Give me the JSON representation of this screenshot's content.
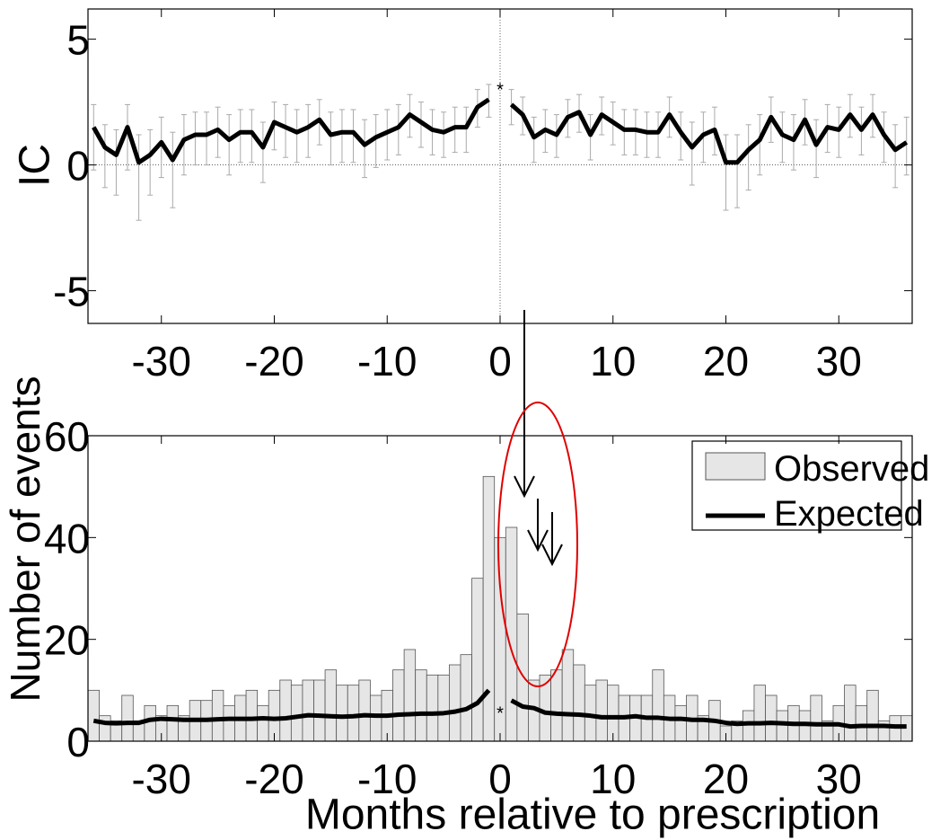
{
  "chart_data": [
    {
      "type": "line",
      "ylabel": "IC",
      "x": [
        -36,
        -35,
        -34,
        -33,
        -32,
        -31,
        -30,
        -29,
        -28,
        -27,
        -26,
        -25,
        -24,
        -23,
        -22,
        -21,
        -20,
        -19,
        -18,
        -17,
        -16,
        -15,
        -14,
        -13,
        -12,
        -11,
        -10,
        -9,
        -8,
        -7,
        -6,
        -5,
        -4,
        -3,
        -2,
        -1,
        0,
        1,
        2,
        3,
        4,
        5,
        6,
        7,
        8,
        9,
        10,
        11,
        12,
        13,
        14,
        15,
        16,
        17,
        18,
        19,
        20,
        21,
        22,
        23,
        24,
        25,
        26,
        27,
        28,
        29,
        30,
        31,
        32,
        33,
        34,
        35,
        36
      ],
      "values": [
        1.5,
        0.7,
        0.4,
        1.5,
        0.1,
        0.4,
        0.9,
        0.2,
        1.0,
        1.2,
        1.2,
        1.4,
        1.0,
        1.3,
        1.3,
        0.7,
        1.7,
        1.5,
        1.3,
        1.5,
        1.8,
        1.2,
        1.3,
        1.3,
        0.8,
        1.1,
        1.3,
        1.5,
        2.0,
        1.7,
        1.4,
        1.3,
        1.5,
        1.5,
        2.3,
        2.6,
        null,
        2.4,
        2.0,
        1.1,
        1.4,
        1.2,
        1.9,
        2.1,
        1.2,
        2.0,
        1.7,
        1.4,
        1.4,
        1.3,
        1.3,
        2.0,
        1.3,
        0.7,
        1.2,
        1.4,
        0.1,
        0.1,
        0.6,
        1.0,
        1.9,
        1.2,
        1.0,
        1.8,
        0.8,
        1.5,
        1.4,
        2.0,
        1.4,
        2.0,
        1.2,
        0.6,
        0.9
      ],
      "error_lower": [
        -0.2,
        -0.9,
        -1.2,
        -0.2,
        -2.2,
        -1.2,
        -0.5,
        -1.7,
        -0.4,
        0.0,
        0.0,
        0.3,
        -0.4,
        0.1,
        0.1,
        -0.7,
        0.6,
        0.3,
        0.1,
        0.3,
        0.8,
        0.0,
        0.1,
        0.1,
        -0.5,
        -0.1,
        0.2,
        0.4,
        1.1,
        0.7,
        0.4,
        0.3,
        0.5,
        0.5,
        1.5,
        1.9,
        null,
        1.6,
        1.2,
        0.1,
        0.5,
        0.3,
        1.1,
        1.3,
        0.2,
        1.2,
        0.8,
        0.4,
        0.4,
        0.3,
        0.3,
        1.1,
        0.2,
        -0.8,
        0.1,
        0.4,
        -1.8,
        -1.7,
        -1.0,
        -0.4,
        0.9,
        0.1,
        -0.2,
        0.8,
        -0.5,
        0.5,
        0.3,
        1.1,
        0.4,
        1.1,
        0.1,
        -0.9,
        -0.4
      ],
      "error_upper": [
        2.4,
        1.6,
        1.4,
        2.4,
        1.2,
        1.4,
        1.9,
        1.3,
        2.0,
        2.1,
        2.1,
        2.3,
        2.0,
        2.2,
        2.2,
        1.7,
        2.5,
        2.4,
        2.2,
        2.4,
        2.6,
        2.1,
        2.2,
        2.2,
        1.8,
        2.0,
        2.2,
        2.4,
        2.8,
        2.5,
        2.2,
        2.1,
        2.3,
        2.3,
        3.0,
        3.2,
        null,
        3.0,
        2.7,
        1.9,
        2.2,
        2.0,
        2.6,
        2.8,
        2.0,
        2.7,
        2.5,
        2.2,
        2.2,
        2.1,
        2.1,
        2.7,
        2.1,
        1.7,
        2.1,
        2.3,
        1.2,
        1.2,
        1.6,
        2.0,
        2.7,
        2.1,
        2.0,
        2.6,
        1.8,
        2.4,
        2.3,
        2.8,
        2.3,
        2.8,
        2.1,
        1.6,
        1.9
      ],
      "color": "#000000",
      "error_color": "#aaaaaa",
      "center_marker": {
        "x": 0,
        "value": 3.0
      },
      "xlim": [
        -36.5,
        36.5
      ],
      "ylim": [
        -6.3,
        6.2
      ],
      "xticks": [
        -30,
        -20,
        -10,
        0,
        10,
        20,
        30
      ],
      "yticks": [
        -5,
        0,
        5
      ]
    },
    {
      "type": "bar",
      "ylabel": "Number of events",
      "xlabel": "Months relative to prescription",
      "x": [
        -36,
        -35,
        -34,
        -33,
        -32,
        -31,
        -30,
        -29,
        -28,
        -27,
        -26,
        -25,
        -24,
        -23,
        -22,
        -21,
        -20,
        -19,
        -18,
        -17,
        -16,
        -15,
        -14,
        -13,
        -12,
        -11,
        -10,
        -9,
        -8,
        -7,
        -6,
        -5,
        -4,
        -3,
        -2,
        -1,
        0,
        1,
        2,
        3,
        4,
        5,
        6,
        7,
        8,
        9,
        10,
        11,
        12,
        13,
        14,
        15,
        16,
        17,
        18,
        19,
        20,
        21,
        22,
        23,
        24,
        25,
        26,
        27,
        28,
        29,
        30,
        31,
        32,
        33,
        34,
        35,
        36
      ],
      "series": [
        {
          "name": "Observed",
          "type": "bar",
          "color": "#e6e6e6",
          "values": [
            10,
            5,
            4,
            9,
            4,
            7,
            5,
            7,
            5,
            8,
            8,
            10,
            7,
            9,
            10,
            7,
            10,
            12,
            11,
            12,
            12,
            14,
            11,
            11,
            12,
            9,
            10,
            14,
            18,
            14,
            13,
            13,
            15,
            17,
            32,
            52,
            40,
            42,
            25,
            12,
            13,
            14,
            18,
            15,
            11,
            12,
            11,
            9,
            9,
            9,
            14,
            9,
            7,
            9,
            5,
            8,
            3,
            4,
            6,
            11,
            9,
            6,
            7,
            6,
            9,
            4,
            7,
            11,
            7,
            10,
            4,
            5,
            5
          ]
        },
        {
          "name": "Expected",
          "type": "line",
          "color": "#000000",
          "values": [
            4.0,
            3.6,
            3.5,
            3.6,
            3.6,
            4.2,
            4.4,
            4.3,
            4.2,
            4.2,
            4.2,
            4.3,
            4.4,
            4.4,
            4.4,
            4.5,
            4.4,
            4.5,
            4.8,
            5.1,
            5.0,
            4.9,
            4.8,
            4.9,
            5.1,
            5.0,
            5.0,
            5.2,
            5.3,
            5.4,
            5.4,
            5.5,
            5.8,
            6.3,
            7.5,
            10.0,
            null,
            8.0,
            6.8,
            6.5,
            5.6,
            5.4,
            5.3,
            5.2,
            5.0,
            4.7,
            4.7,
            4.7,
            4.9,
            4.6,
            4.6,
            4.4,
            4.4,
            4.2,
            4.2,
            4.0,
            3.6,
            3.4,
            3.5,
            3.5,
            3.6,
            3.5,
            3.4,
            3.4,
            3.3,
            3.3,
            3.3,
            2.9,
            3.0,
            3.0,
            3.0,
            2.9,
            2.9
          ]
        }
      ],
      "center_marker": {
        "x": 0,
        "value": 5.6
      },
      "legend": "upper right",
      "xlim": [
        -36.5,
        36.5
      ],
      "ylim": [
        0,
        60
      ],
      "xticks": [
        -30,
        -20,
        -10,
        0,
        10,
        20,
        30
      ],
      "yticks": [
        0,
        20,
        40,
        60
      ]
    }
  ]
}
